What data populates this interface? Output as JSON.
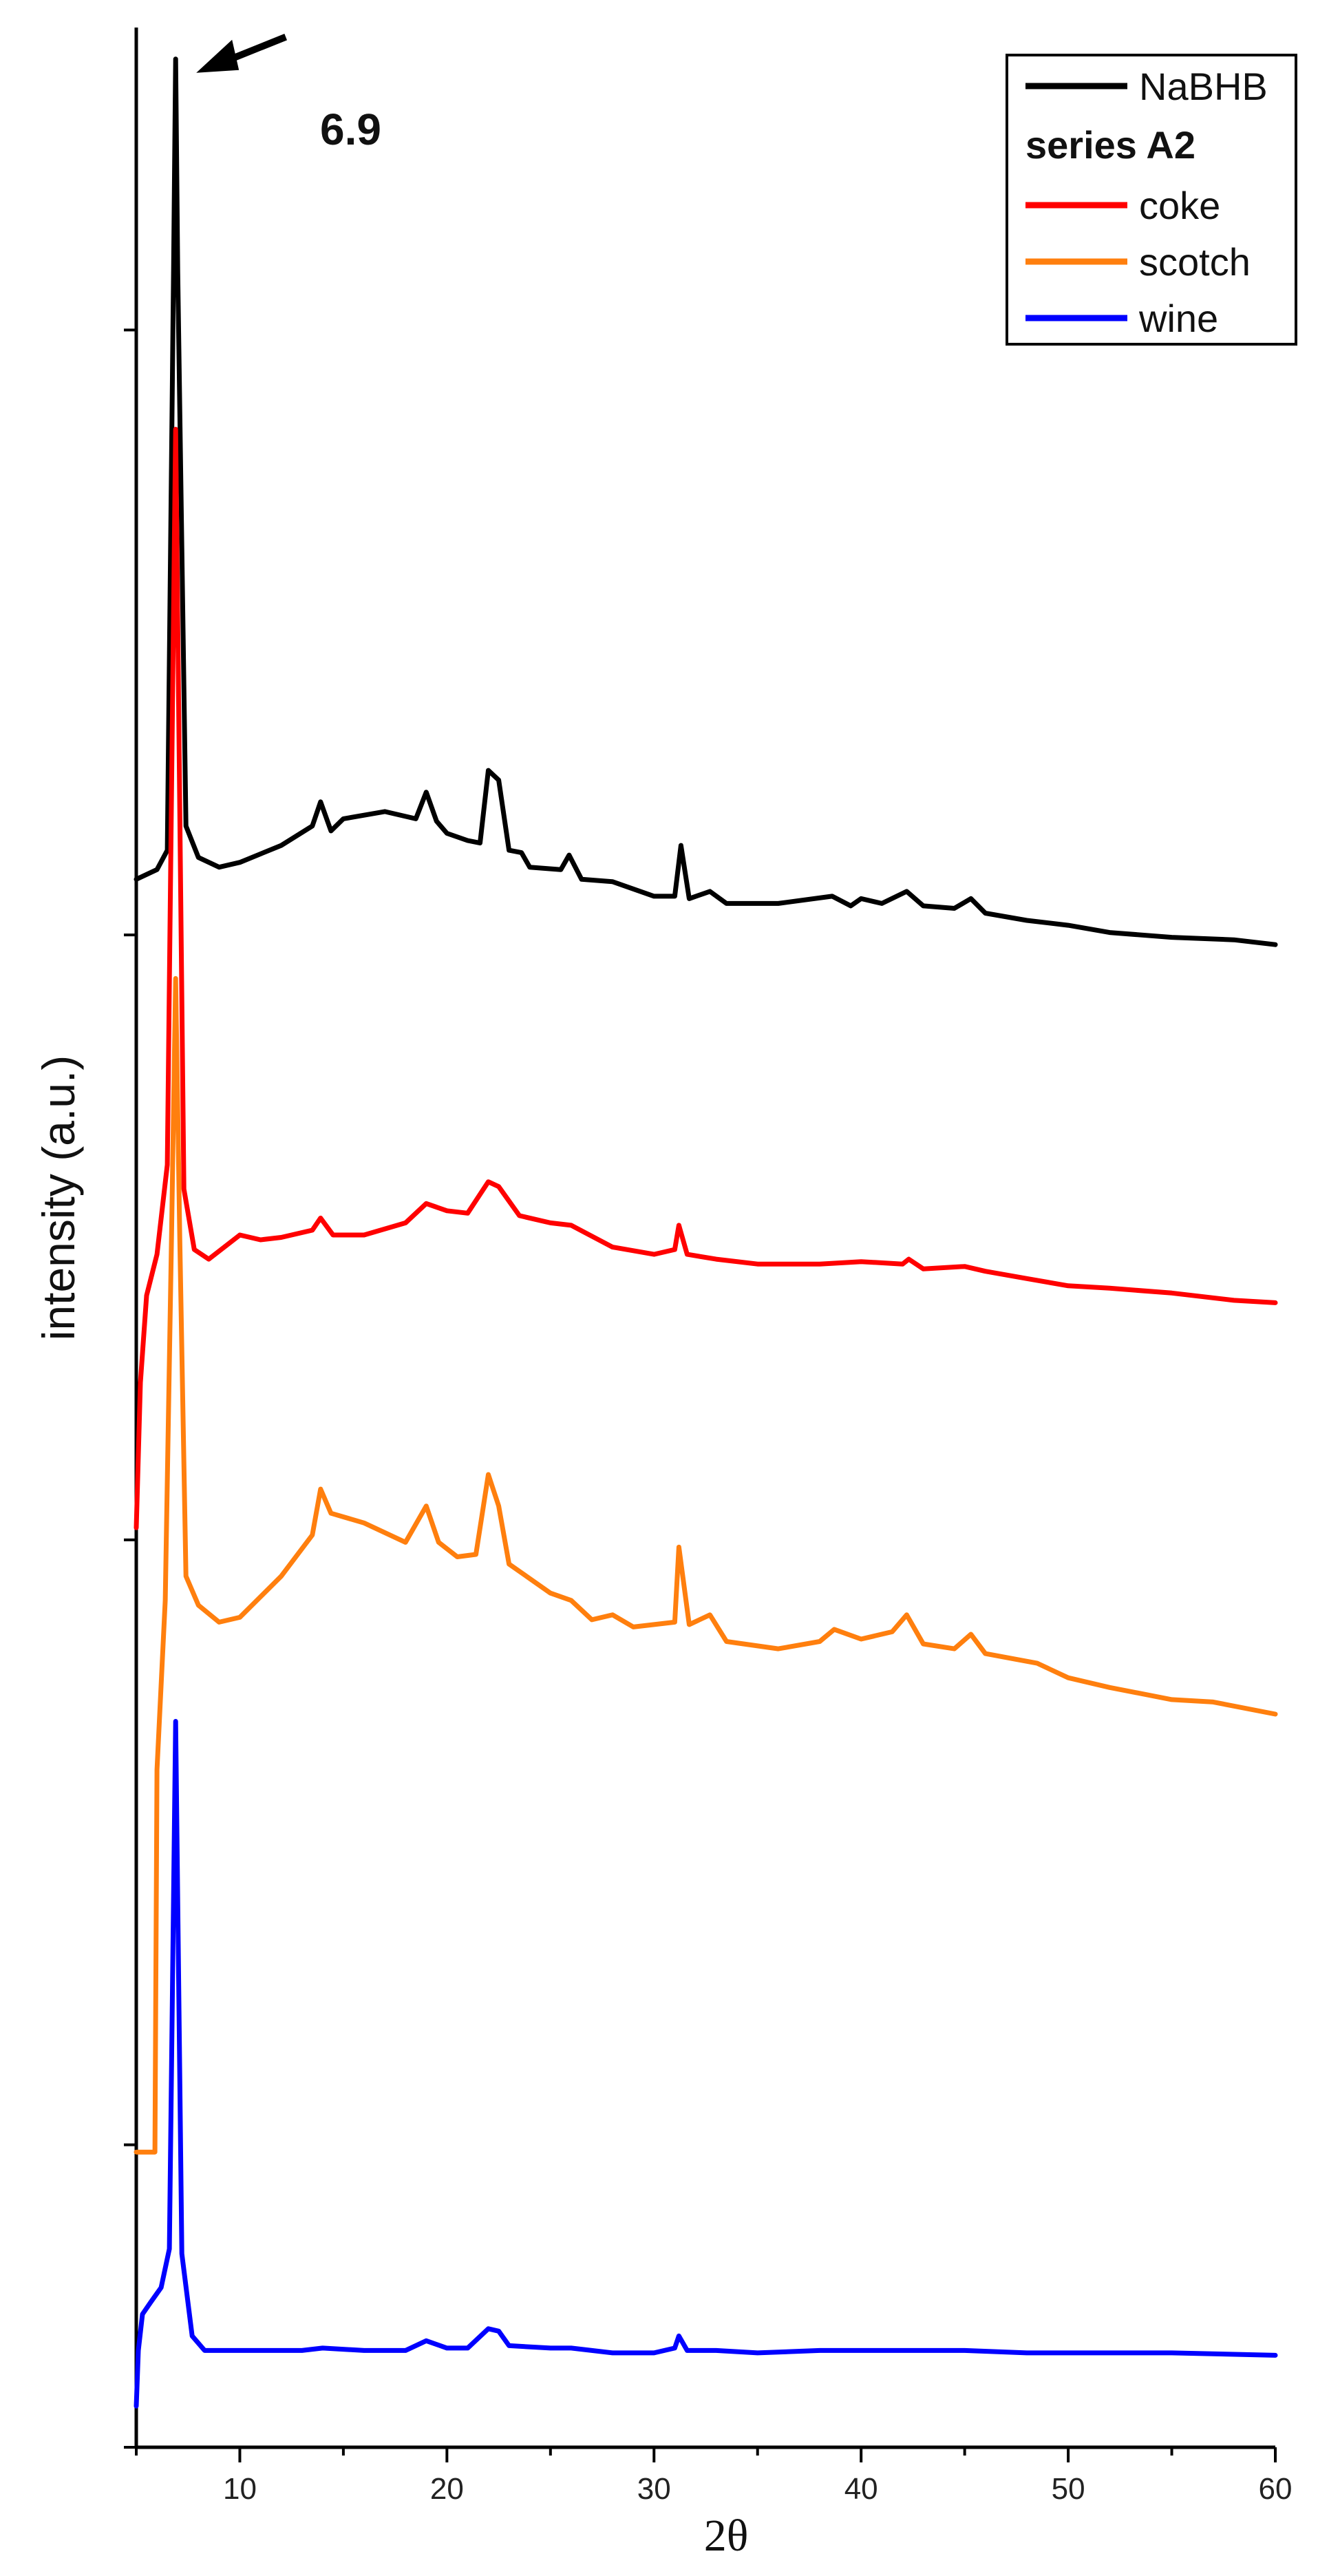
{
  "chart_data": {
    "type": "line",
    "xlabel": "2θ",
    "ylabel": "intensity (a.u.)",
    "xlim": [
      5,
      60
    ],
    "ylim": [
      0,
      100
    ],
    "x_ticks": [
      10,
      20,
      30,
      40,
      50,
      60
    ],
    "y_ticks_labeled": false,
    "y_tick_positions": [
      0,
      12.5,
      37.5,
      62.5,
      87.5
    ],
    "legend": {
      "position": "top-right",
      "heading": "series A2",
      "entries": [
        "NaBHB",
        "coke",
        "scotch",
        "wine"
      ]
    },
    "annotation": {
      "text": "6.9",
      "x": 6.9
    },
    "series": [
      {
        "name": "NaBHB",
        "color": "#000000",
        "points": [
          [
            5,
            64.8
          ],
          [
            6,
            65.2
          ],
          [
            6.5,
            66.0
          ],
          [
            6.8,
            90.0
          ],
          [
            6.9,
            98.7
          ],
          [
            7.0,
            90.0
          ],
          [
            7.4,
            67.0
          ],
          [
            8,
            65.7
          ],
          [
            9,
            65.3
          ],
          [
            10,
            65.5
          ],
          [
            12,
            66.2
          ],
          [
            13.5,
            67.0
          ],
          [
            13.9,
            68.0
          ],
          [
            14.4,
            66.8
          ],
          [
            15,
            67.3
          ],
          [
            17,
            67.6
          ],
          [
            18.5,
            67.3
          ],
          [
            19,
            68.4
          ],
          [
            19.5,
            67.2
          ],
          [
            20,
            66.7
          ],
          [
            21,
            66.4
          ],
          [
            21.6,
            66.3
          ],
          [
            22,
            69.3
          ],
          [
            22.5,
            68.9
          ],
          [
            23,
            66.0
          ],
          [
            23.6,
            65.9
          ],
          [
            24,
            65.3
          ],
          [
            25.5,
            65.2
          ],
          [
            25.9,
            65.8
          ],
          [
            26.5,
            64.8
          ],
          [
            28,
            64.7
          ],
          [
            30,
            64.1
          ],
          [
            31,
            64.1
          ],
          [
            31.3,
            66.2
          ],
          [
            31.7,
            64.0
          ],
          [
            32.7,
            64.3
          ],
          [
            33.5,
            63.8
          ],
          [
            36,
            63.8
          ],
          [
            38.6,
            64.1
          ],
          [
            39.5,
            63.7
          ],
          [
            40,
            64.0
          ],
          [
            41,
            63.8
          ],
          [
            42.2,
            64.3
          ],
          [
            43,
            63.7
          ],
          [
            44.5,
            63.6
          ],
          [
            45.3,
            64.0
          ],
          [
            46,
            63.4
          ],
          [
            48,
            63.1
          ],
          [
            50,
            62.9
          ],
          [
            52,
            62.6
          ],
          [
            55,
            62.4
          ],
          [
            58,
            62.3
          ],
          [
            60,
            62.1
          ]
        ]
      },
      {
        "name": "coke",
        "color": "#ff0000",
        "points": [
          [
            5,
            38.0
          ],
          [
            5.2,
            44.0
          ],
          [
            5.5,
            47.6
          ],
          [
            6.0,
            49.3
          ],
          [
            6.5,
            53.0
          ],
          [
            6.9,
            83.4
          ],
          [
            7.3,
            52.0
          ],
          [
            7.8,
            49.5
          ],
          [
            8.5,
            49.1
          ],
          [
            10,
            50.1
          ],
          [
            11,
            49.9
          ],
          [
            12,
            50.0
          ],
          [
            13.5,
            50.3
          ],
          [
            13.9,
            50.8
          ],
          [
            14.5,
            50.1
          ],
          [
            16,
            50.1
          ],
          [
            18,
            50.6
          ],
          [
            19,
            51.4
          ],
          [
            20,
            51.1
          ],
          [
            21,
            51.0
          ],
          [
            22,
            52.3
          ],
          [
            22.5,
            52.1
          ],
          [
            23.5,
            50.9
          ],
          [
            25,
            50.6
          ],
          [
            26,
            50.5
          ],
          [
            28,
            49.6
          ],
          [
            30,
            49.3
          ],
          [
            31,
            49.5
          ],
          [
            31.2,
            50.5
          ],
          [
            31.6,
            49.3
          ],
          [
            33,
            49.1
          ],
          [
            35,
            48.9
          ],
          [
            38,
            48.9
          ],
          [
            40,
            49.0
          ],
          [
            42,
            48.9
          ],
          [
            42.3,
            49.1
          ],
          [
            43,
            48.7
          ],
          [
            45,
            48.8
          ],
          [
            46,
            48.6
          ],
          [
            48,
            48.3
          ],
          [
            50,
            48.0
          ],
          [
            52,
            47.9
          ],
          [
            55,
            47.7
          ],
          [
            58,
            47.4
          ],
          [
            60,
            47.3
          ]
        ]
      },
      {
        "name": "scotch",
        "color": "#ff7f0e",
        "points": [
          [
            5,
            12.2
          ],
          [
            5.9,
            12.2
          ],
          [
            6.0,
            28.0
          ],
          [
            6.4,
            35.0
          ],
          [
            6.7,
            50.0
          ],
          [
            6.9,
            60.7
          ],
          [
            7.1,
            50.0
          ],
          [
            7.4,
            36.0
          ],
          [
            8,
            34.8
          ],
          [
            9,
            34.1
          ],
          [
            10,
            34.3
          ],
          [
            12,
            36.0
          ],
          [
            13.5,
            37.7
          ],
          [
            13.9,
            39.6
          ],
          [
            14.4,
            38.6
          ],
          [
            16,
            38.2
          ],
          [
            18,
            37.4
          ],
          [
            19,
            38.9
          ],
          [
            19.6,
            37.4
          ],
          [
            20.5,
            36.8
          ],
          [
            21.4,
            36.9
          ],
          [
            22,
            40.2
          ],
          [
            22.5,
            38.9
          ],
          [
            23,
            36.5
          ],
          [
            25,
            35.3
          ],
          [
            26,
            35.0
          ],
          [
            27,
            34.2
          ],
          [
            28,
            34.4
          ],
          [
            29,
            33.9
          ],
          [
            31,
            34.1
          ],
          [
            31.2,
            37.2
          ],
          [
            31.7,
            34.0
          ],
          [
            32.7,
            34.4
          ],
          [
            33.5,
            33.3
          ],
          [
            36,
            33.0
          ],
          [
            38,
            33.3
          ],
          [
            38.7,
            33.8
          ],
          [
            40,
            33.4
          ],
          [
            41.5,
            33.7
          ],
          [
            42.2,
            34.4
          ],
          [
            43,
            33.2
          ],
          [
            44.5,
            33.0
          ],
          [
            45.3,
            33.6
          ],
          [
            46,
            32.8
          ],
          [
            48.5,
            32.4
          ],
          [
            50,
            31.8
          ],
          [
            52,
            31.4
          ],
          [
            55,
            30.9
          ],
          [
            57,
            30.8
          ],
          [
            60,
            30.3
          ]
        ]
      },
      {
        "name": "wine",
        "color": "#0000ff",
        "points": [
          [
            5,
            1.7
          ],
          [
            5.1,
            4.0
          ],
          [
            5.3,
            5.5
          ],
          [
            5.7,
            6.0
          ],
          [
            6.2,
            6.6
          ],
          [
            6.6,
            8.2
          ],
          [
            6.9,
            30.0
          ],
          [
            7.2,
            8.0
          ],
          [
            7.7,
            4.6
          ],
          [
            8.3,
            4.0
          ],
          [
            10,
            4.0
          ],
          [
            13,
            4.0
          ],
          [
            14,
            4.1
          ],
          [
            16,
            4.0
          ],
          [
            18,
            4.0
          ],
          [
            19,
            4.4
          ],
          [
            20,
            4.1
          ],
          [
            21,
            4.1
          ],
          [
            22,
            4.9
          ],
          [
            22.5,
            4.8
          ],
          [
            23,
            4.2
          ],
          [
            25,
            4.1
          ],
          [
            26,
            4.1
          ],
          [
            28,
            3.9
          ],
          [
            30,
            3.9
          ],
          [
            31,
            4.1
          ],
          [
            31.2,
            4.6
          ],
          [
            31.6,
            4.0
          ],
          [
            33,
            4.0
          ],
          [
            35,
            3.9
          ],
          [
            38,
            4.0
          ],
          [
            40,
            4.0
          ],
          [
            42,
            4.0
          ],
          [
            45,
            4.0
          ],
          [
            48,
            3.9
          ],
          [
            50,
            3.9
          ],
          [
            55,
            3.9
          ],
          [
            60,
            3.8
          ]
        ]
      }
    ]
  }
}
